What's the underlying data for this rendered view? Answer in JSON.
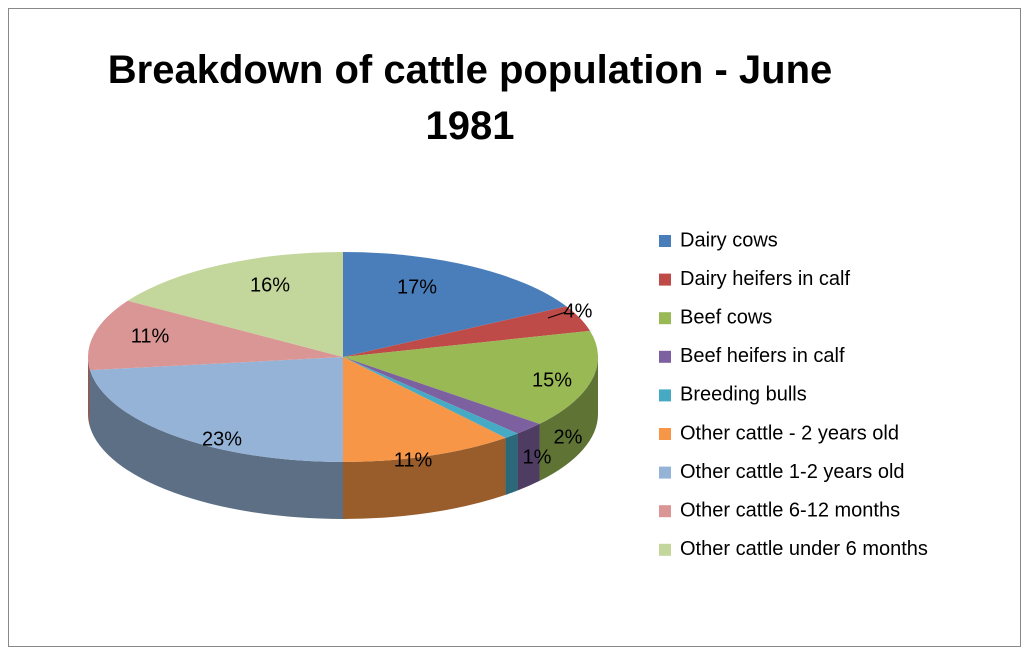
{
  "chart_data": {
    "type": "pie3d",
    "title": "Breakdown of cattle population - June 1981",
    "categories": [
      "Dairy cows",
      "Dairy heifers in calf",
      "Beef cows",
      "Beef heifers in calf",
      "Breeding bulls",
      "Other cattle - 2 years old",
      "Other cattle 1-2 years old",
      "Other cattle 6-12 months",
      "Other cattle under 6 months"
    ],
    "values": [
      17,
      4,
      15,
      2,
      1,
      11,
      23,
      11,
      16
    ],
    "value_labels": [
      "17%",
      "4%",
      "15%",
      "2%",
      "1%",
      "11%",
      "23%",
      "11%",
      "16%"
    ],
    "colors": [
      "#4a7ebb",
      "#be4b48",
      "#98b954",
      "#7d60a0",
      "#46aac5",
      "#f79646",
      "#95b3d7",
      "#d99694",
      "#c3d69b"
    ],
    "legend": "right"
  }
}
